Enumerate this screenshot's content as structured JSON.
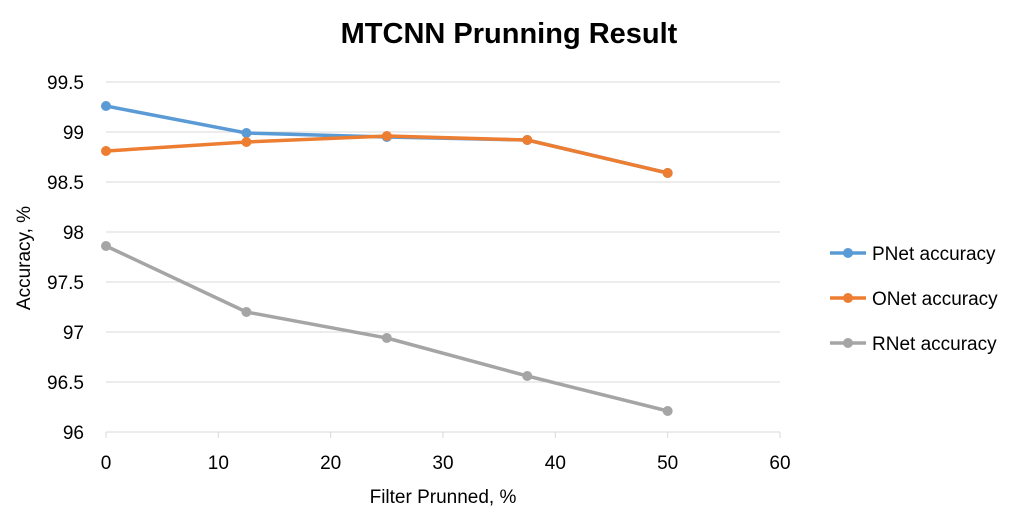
{
  "chart_data": {
    "type": "line",
    "title": "MTCNN Prunning Result",
    "xlabel": "Filter Prunned, %",
    "ylabel": "Accuracy, %",
    "xlim": [
      0,
      60
    ],
    "ylim": [
      96,
      99.5
    ],
    "xticks": [
      0,
      10,
      20,
      30,
      40,
      50,
      60
    ],
    "yticks": [
      96,
      96.5,
      97,
      97.5,
      98,
      98.5,
      99,
      99.5
    ],
    "grid": "horizontal",
    "legend_position": "right",
    "series": [
      {
        "name": "PNet accuracy",
        "color": "#5B9BD5",
        "x": [
          0,
          12.5,
          25,
          37.5,
          50
        ],
        "y": [
          99.26,
          98.99,
          98.95,
          98.92,
          98.59
        ]
      },
      {
        "name": "ONet accuracy",
        "color": "#ED7D31",
        "x": [
          0,
          12.5,
          25,
          37.5,
          50
        ],
        "y": [
          98.81,
          98.9,
          98.96,
          98.92,
          98.59
        ]
      },
      {
        "name": "RNet accuracy",
        "color": "#A5A5A5",
        "x": [
          0,
          12.5,
          25,
          37.5,
          50
        ],
        "y": [
          97.86,
          97.2,
          96.94,
          96.56,
          96.21
        ]
      }
    ]
  }
}
